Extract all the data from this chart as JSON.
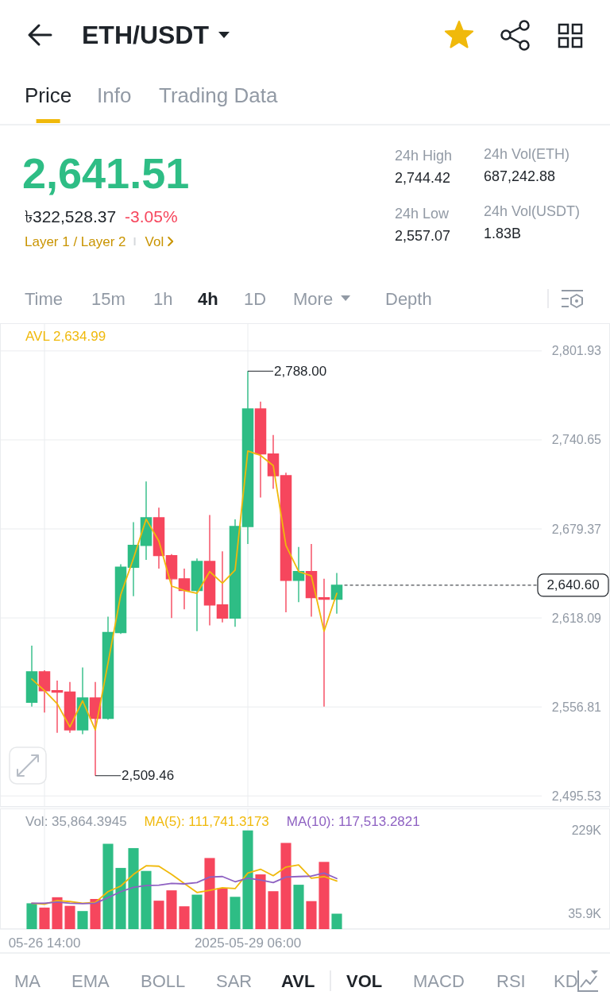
{
  "chart_data": [
    {
      "type": "other",
      "title": "ETH/USDT",
      "annotations": [
        "Price",
        "Info",
        "Trading Data",
        "2,641.51",
        "৳322,528.37",
        "-3.05%",
        "Layer 1 / Layer 2",
        "Vol",
        "24h High",
        "2,744.42",
        "24h Low",
        "2,557.07",
        "24h Vol(ETH)",
        "687,242.88",
        "24h Vol(USDT)",
        "1.83B",
        "Time",
        "15m",
        "1h",
        "4h",
        "1D",
        "More",
        "Depth"
      ]
    },
    {
      "type": "candlestick",
      "x": [
        "2025-05-26T10:00",
        "2025-05-26T14:00",
        "2025-05-26T18:00",
        "2025-05-26T22:00",
        "2025-05-27T02:00",
        "2025-05-27T06:00",
        "2025-05-27T10:00",
        "2025-05-27T14:00",
        "2025-05-27T18:00",
        "2025-05-27T22:00",
        "2025-05-28T02:00",
        "2025-05-28T06:00",
        "2025-05-28T10:00",
        "2025-05-28T14:00",
        "2025-05-28T18:00",
        "2025-05-28T22:00",
        "2025-05-29T02:00",
        "2025-05-29T06:00",
        "2025-05-29T10:00",
        "2025-05-29T14:00",
        "2025-05-29T18:00",
        "2025-05-29T22:00",
        "2025-05-30T02:00",
        "2025-05-30T06:00",
        "2025-05-30T10:00"
      ],
      "ohlc": [
        [
          2560,
          2599,
          2557,
          2581
        ],
        [
          2581,
          2582,
          2553,
          2568
        ],
        [
          2568,
          2575,
          2539,
          2567
        ],
        [
          2567,
          2574,
          2539,
          2541
        ],
        [
          2541,
          2584,
          2538,
          2563
        ],
        [
          2563,
          2574,
          2509.46,
          2549
        ],
        [
          2549,
          2619,
          2548,
          2608
        ],
        [
          2608,
          2655,
          2607,
          2653
        ],
        [
          2653,
          2684,
          2633,
          2668
        ],
        [
          2668,
          2712,
          2658,
          2687
        ],
        [
          2687,
          2694,
          2652,
          2661
        ],
        [
          2661,
          2662,
          2618,
          2645
        ],
        [
          2645,
          2652,
          2624,
          2637
        ],
        [
          2637,
          2659,
          2609,
          2657
        ],
        [
          2657,
          2689,
          2613,
          2627
        ],
        [
          2627,
          2664,
          2615,
          2618
        ],
        [
          2618,
          2686,
          2612,
          2681
        ],
        [
          2681,
          2788,
          2669,
          2762
        ],
        [
          2762,
          2767,
          2701,
          2731
        ],
        [
          2731,
          2744,
          2707,
          2716
        ],
        [
          2716,
          2718,
          2622,
          2644
        ],
        [
          2644,
          2667,
          2629,
          2650
        ],
        [
          2650,
          2669,
          2619,
          2632
        ],
        [
          2632,
          2645,
          2557,
          2631
        ],
        [
          2631,
          2649,
          2621,
          2640.6
        ]
      ],
      "colors": [
        "#2ebd85",
        "#f6465d",
        "#f6465d",
        "#f6465d",
        "#2ebd85",
        "#f6465d",
        "#2ebd85",
        "#2ebd85",
        "#2ebd85",
        "#2ebd85",
        "#f6465d",
        "#f6465d",
        "#f6465d",
        "#2ebd85",
        "#f6465d",
        "#f6465d",
        "#2ebd85",
        "#2ebd85",
        "#f6465d",
        "#f6465d",
        "#f6465d",
        "#2ebd85",
        "#f6465d",
        "#f6465d",
        "#2ebd85"
      ],
      "series": [
        {
          "type": "line",
          "name": "AVL 2,634.99",
          "color": "#f0b90b",
          "values": [
            2576,
            2568,
            2559,
            2543,
            2561,
            2541,
            2587,
            2634,
            2659,
            2686,
            2671,
            2640,
            2637,
            2635,
            2650,
            2642,
            2651,
            2733,
            2730,
            2723,
            2668,
            2650,
            2647,
            2609,
            2634.99
          ]
        }
      ],
      "xlim": [
        "2025-05-26T00:00",
        "2025-06-03T00:00"
      ],
      "xticks": [
        {
          "value": "2025-05-26T14:00",
          "label": null
        },
        {
          "value": "2025-05-29T06:00",
          "label": null
        }
      ],
      "ylim": [
        2488,
        2821
      ],
      "yticks": [
        {
          "value": 2495.53,
          "label": "2,495.53"
        },
        {
          "value": 2556.81,
          "label": "2,556.81"
        },
        {
          "value": 2618.09,
          "label": "2,618.09"
        },
        {
          "value": 2679.37,
          "label": "2,679.37"
        },
        {
          "value": 2740.65,
          "label": "2,740.65"
        },
        {
          "value": 2801.93,
          "label": "2,801.93"
        }
      ],
      "tick_labels": "y",
      "grid": true,
      "legend": "top left",
      "annotations": [
        {
          "text": "2,788.00",
          "x": "2025-05-29T06:00",
          "y": 2788
        },
        {
          "text": "2,509.46",
          "x": "2025-05-27T06:00",
          "y": 2509.46
        }
      ],
      "ref_lines": [
        {
          "axis": "y",
          "value": 2640.6,
          "label": "2,640.60",
          "line_style": "dashed"
        }
      ]
    },
    {
      "type": "bar",
      "x": [
        "2025-05-26T10:00",
        "2025-05-26T14:00",
        "2025-05-26T18:00",
        "2025-05-26T22:00",
        "2025-05-27T02:00",
        "2025-05-27T06:00",
        "2025-05-27T10:00",
        "2025-05-27T14:00",
        "2025-05-27T18:00",
        "2025-05-27T22:00",
        "2025-05-28T02:00",
        "2025-05-28T06:00",
        "2025-05-28T10:00",
        "2025-05-28T14:00",
        "2025-05-28T18:00",
        "2025-05-28T22:00",
        "2025-05-29T02:00",
        "2025-05-29T06:00",
        "2025-05-29T10:00",
        "2025-05-29T14:00",
        "2025-05-29T18:00",
        "2025-05-29T22:00",
        "2025-05-30T02:00",
        "2025-05-30T06:00",
        "2025-05-30T10:00"
      ],
      "series": [
        {
          "type": "bar",
          "values": [
            60000,
            50000,
            74000,
            54000,
            42000,
            70000,
            198000,
            142000,
            188000,
            135000,
            66000,
            90000,
            53000,
            80000,
            165000,
            95000,
            75000,
            229000,
            127000,
            88000,
            200000,
            103000,
            65000,
            156000,
            35864.3945
          ],
          "colors": [
            "#2ebd85",
            "#f6465d",
            "#f6465d",
            "#f6465d",
            "#2ebd85",
            "#f6465d",
            "#2ebd85",
            "#2ebd85",
            "#2ebd85",
            "#2ebd85",
            "#f6465d",
            "#f6465d",
            "#f6465d",
            "#2ebd85",
            "#f6465d",
            "#f6465d",
            "#2ebd85",
            "#2ebd85",
            "#f6465d",
            "#f6465d",
            "#f6465d",
            "#2ebd85",
            "#f6465d",
            "#f6465d",
            "#2ebd85"
          ]
        },
        {
          "type": "line",
          "name": "MA(5): 111,741.3173",
          "color": "#f0b90b",
          "values": [
            60000,
            58000,
            66000,
            64000,
            60000,
            62000,
            87000,
            100000,
            127000,
            147000,
            146000,
            127000,
            106000,
            85000,
            90000,
            96000,
            94000,
            130000,
            139000,
            124000,
            144000,
            149000,
            118000,
            122000,
            111741.3173
          ]
        },
        {
          "type": "line",
          "name": "MA(10): 117,513.2821",
          "color": "#8e61c2",
          "values": [
            60000,
            60000,
            63000,
            60000,
            59000,
            60000,
            73000,
            87000,
            97000,
            101000,
            102000,
            106000,
            105000,
            108000,
            121000,
            122000,
            110000,
            118000,
            114000,
            108000,
            121000,
            122000,
            123000,
            130000,
            117513.2821
          ]
        }
      ],
      "xlim": [
        "2025-05-26T00:00",
        "2025-06-03T00:00"
      ],
      "xticks": [
        {
          "value": "2025-05-26T14:00",
          "label": "05-26 14:00"
        },
        {
          "value": "2025-05-29T06:00",
          "label": "2025-05-29 06:00"
        }
      ],
      "ylim": [
        0,
        280000
      ],
      "yticks": [
        {
          "value": 35900,
          "label": "35.9K"
        },
        {
          "value": 229000,
          "label": "229K"
        }
      ],
      "grid": "x",
      "legend": "top left",
      "annotations": [
        "Vol: 35,864.3945"
      ]
    },
    {
      "type": "other",
      "annotations": [
        "MA",
        "EMA",
        "BOLL",
        "SAR",
        "AVL",
        "VOL",
        "MACD",
        "RSI",
        "KD"
      ]
    }
  ]
}
